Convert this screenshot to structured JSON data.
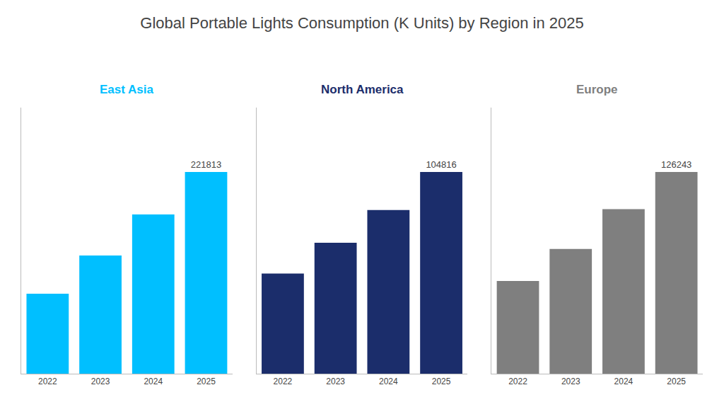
{
  "title": "Global Portable Lights Consumption (K Units) by Region in 2025",
  "chart_data": [
    {
      "type": "bar",
      "title": "East Asia",
      "categories": [
        "2022",
        "2023",
        "2024",
        "2025"
      ],
      "values": [
        88000,
        130000,
        175000,
        221813
      ],
      "value_labels": [
        null,
        null,
        null,
        "221813"
      ],
      "color": "#00bfff",
      "ylim": [
        0,
        292793.16
      ],
      "grid": false,
      "tick_labels": "x"
    },
    {
      "type": "bar",
      "title": "North America",
      "categories": [
        "2022",
        "2023",
        "2024",
        "2025"
      ],
      "values": [
        52000,
        68000,
        85000,
        104816
      ],
      "value_labels": [
        null,
        null,
        null,
        "104816"
      ],
      "color": "#1b2d6b",
      "ylim": [
        0,
        138357.12
      ],
      "grid": false,
      "tick_labels": "x"
    },
    {
      "type": "bar",
      "title": "Europe",
      "categories": [
        "2022",
        "2023",
        "2024",
        "2025"
      ],
      "values": [
        58000,
        78000,
        103000,
        126243
      ],
      "value_labels": [
        null,
        null,
        null,
        "126243"
      ],
      "color": "#7f7f7f",
      "ylim": [
        0,
        166640.76
      ],
      "grid": false,
      "tick_labels": "x"
    }
  ]
}
